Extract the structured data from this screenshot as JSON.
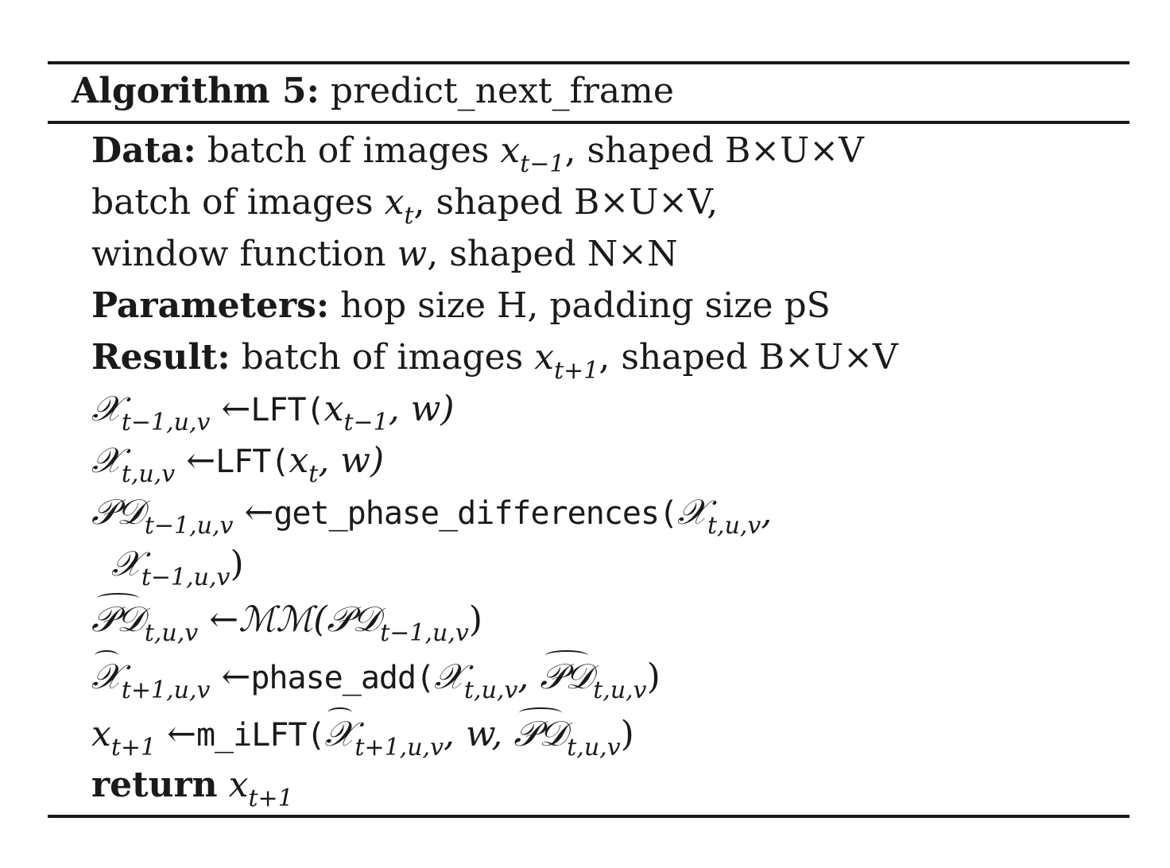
{
  "algorithm": {
    "label": "Algorithm 5:",
    "name": "predict_next_frame"
  },
  "lines": {
    "data_kw": "Data:",
    "data_1_text": "batch of images",
    "data_1_var": "x",
    "data_1_sub": "t−1",
    "data_1_shape": ", shaped B×U×V",
    "data_2_text": "batch of images",
    "data_2_var": "x",
    "data_2_sub": "t",
    "data_2_shape": ", shaped B×U×V,",
    "data_3_text": "window function",
    "data_3_var": "w",
    "data_3_shape": ", shaped N×N",
    "params_kw": "Parameters:",
    "params_text": "hop size H, padding size pS",
    "result_kw": "Result:",
    "result_text": "batch of images",
    "result_var": "x",
    "result_sub": "t+1",
    "result_shape": ", shaped B×U×V",
    "step1_lhs": "𝒳",
    "step1_lhs_sub": "t−1,u,v",
    "step1_arrow": " ←",
    "step1_fn": "LFT(",
    "step1_arg": "x",
    "step1_arg_sub": "t−1",
    "step1_rest": ", w)",
    "step2_lhs": "𝒳",
    "step2_lhs_sub": "t,u,v",
    "step2_arrow": " ←",
    "step2_fn": "LFT(",
    "step2_arg": "x",
    "step2_arg_sub": "t",
    "step2_rest": ", w)",
    "step3_lhs": "𝒫𝒟",
    "step3_lhs_sub": "t−1,u,v",
    "step3_arrow": " ←",
    "step3_fn": "get_phase_differences(",
    "step3_arg": "𝒳",
    "step3_arg_sub": "t,u,v",
    "step3_comma": ",",
    "step3_cont": "𝒳",
    "step3_cont_sub": "t−1,u,v",
    "step3_close": ")",
    "step4_lhs": "𝒫𝒟",
    "step4_lhs_sub": "t,u,v",
    "step4_arrow": " ←",
    "step4_fn": "ℳℳ",
    "step4_arg": "(𝒫𝒟",
    "step4_arg_sub": "t−1,u,v",
    "step4_close": ")",
    "step5_lhs": "𝒳",
    "step5_lhs_sub": "t+1,u,v",
    "step5_arrow": " ←",
    "step5_fn": "phase_add(",
    "step5_arg": "𝒳",
    "step5_arg_sub": "t,u,v",
    "step5_comma": ", ",
    "step5_arg2": "𝒫𝒟",
    "step5_arg2_sub": "t,u,v",
    "step5_close": ")",
    "step6_lhs": "x",
    "step6_lhs_sub": "t+1",
    "step6_arrow": " ←",
    "step6_fn": "m_iLFT(",
    "step6_arg": "𝒳",
    "step6_arg_sub": "t+1,u,v",
    "step6_mid": ", w, ",
    "step6_arg2": "𝒫𝒟",
    "step6_arg2_sub": "t,u,v",
    "step6_close": ")",
    "return_kw": "return",
    "return_var": "x",
    "return_sub": "t+1"
  }
}
